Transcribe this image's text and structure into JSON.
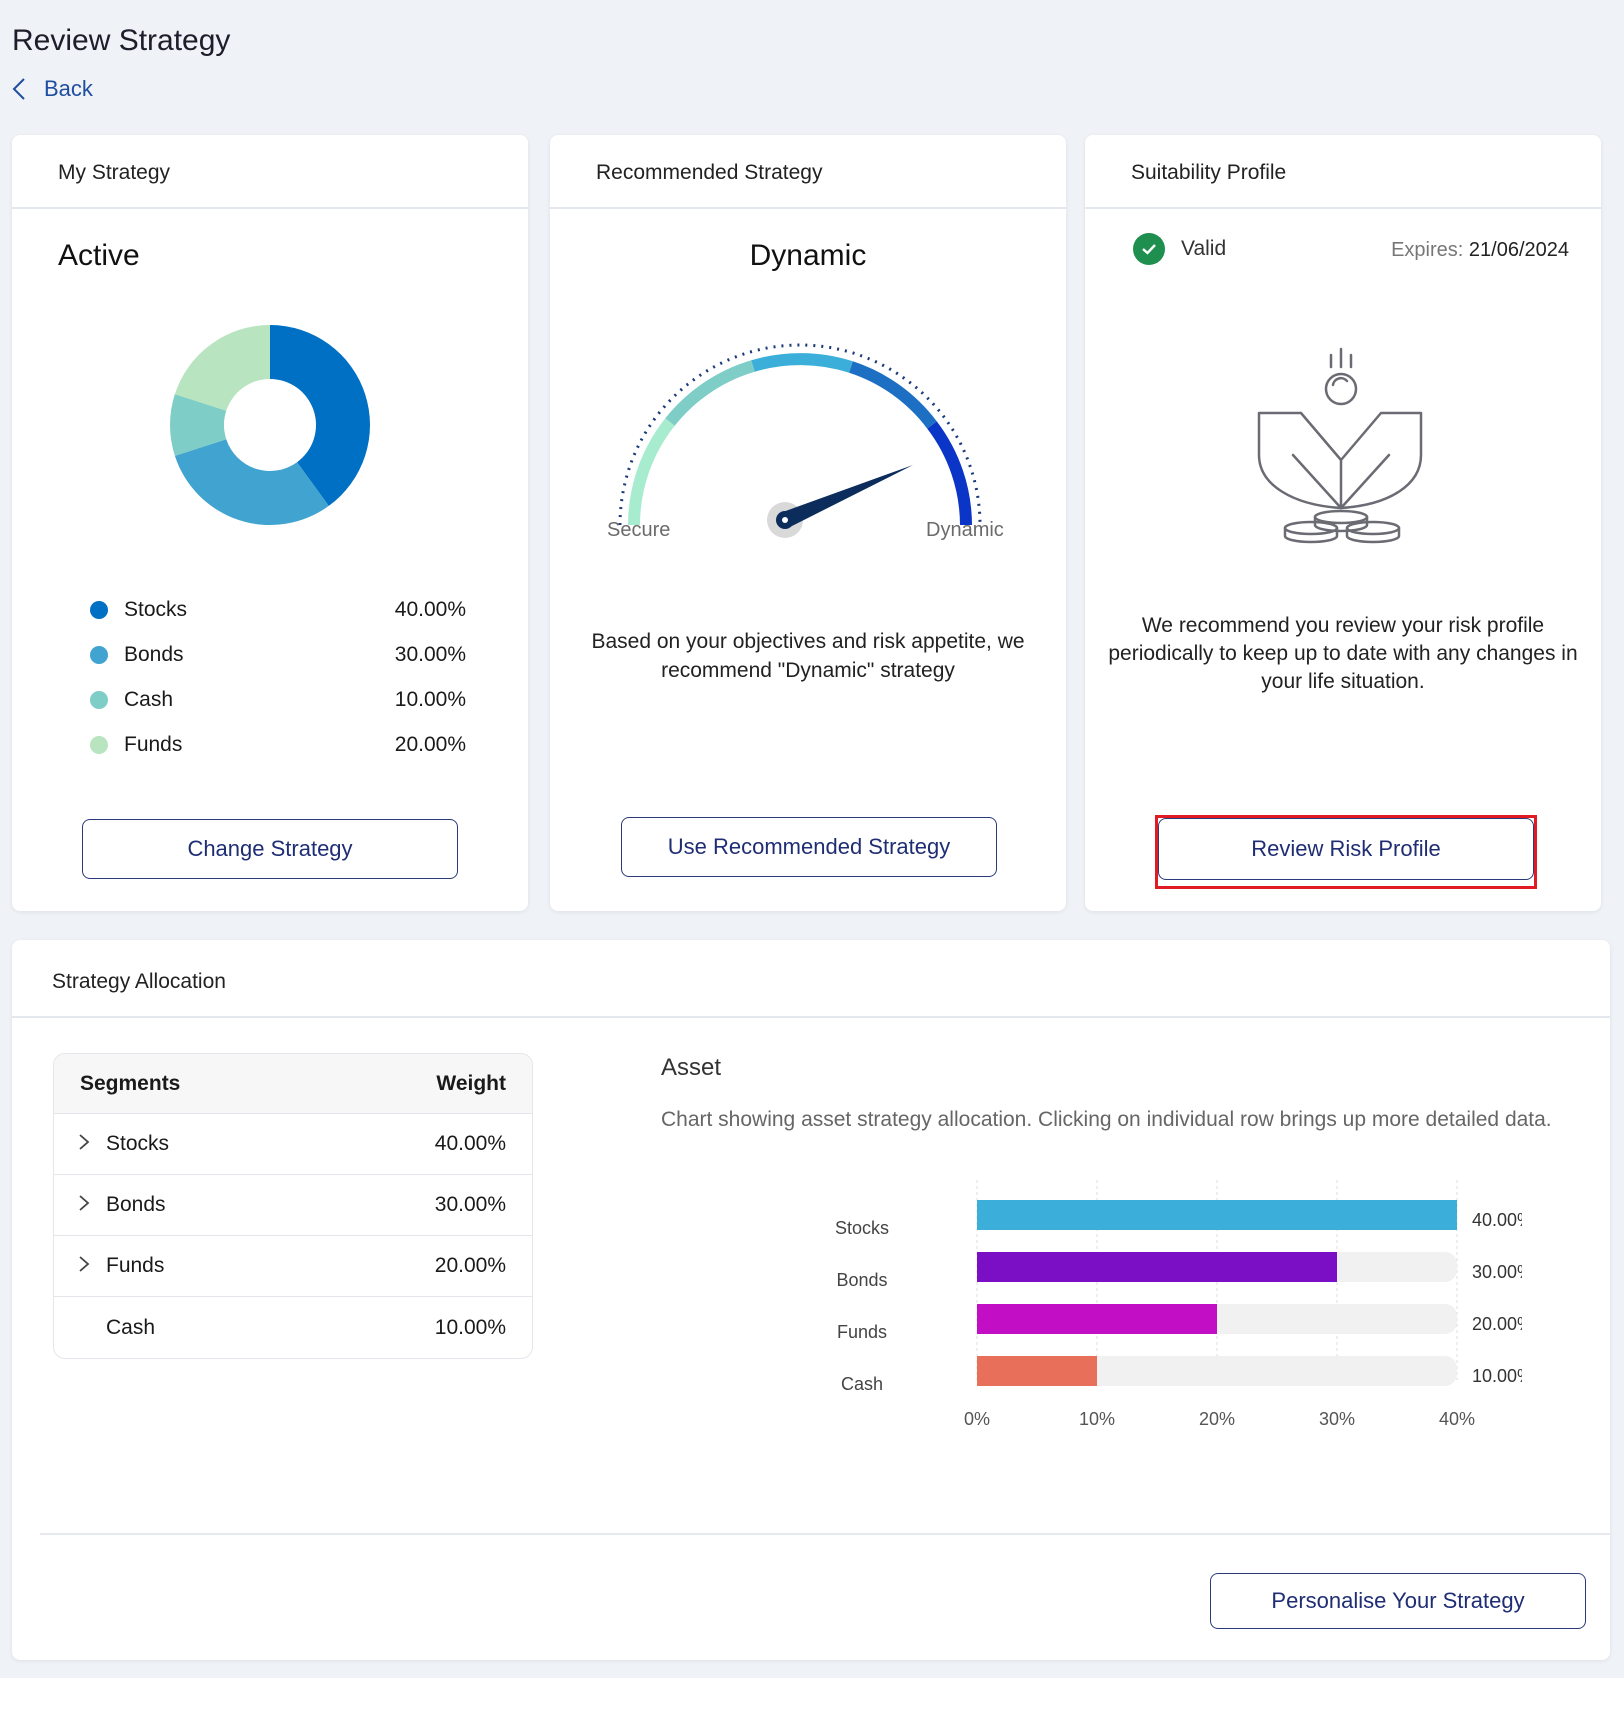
{
  "page": {
    "title": "Review Strategy",
    "back_label": "Back"
  },
  "my_strategy": {
    "header": "My Strategy",
    "status": "Active",
    "legend": [
      {
        "label": "Stocks",
        "value": "40.00%",
        "color": "#0070c4"
      },
      {
        "label": "Bonds",
        "value": "30.00%",
        "color": "#41a3d0"
      },
      {
        "label": "Cash",
        "value": "10.00%",
        "color": "#7ecdc7"
      },
      {
        "label": "Funds",
        "value": "20.00%",
        "color": "#b8e4bf"
      }
    ],
    "button": "Change Strategy"
  },
  "recommended": {
    "header": "Recommended Strategy",
    "title": "Dynamic",
    "gauge_min_label": "Secure",
    "gauge_max_label": "Dynamic",
    "description": "Based on your objectives and risk appetite, we recommend \"Dynamic\" strategy",
    "button": "Use Recommended Strategy"
  },
  "suitability": {
    "header": "Suitability Profile",
    "status": "Valid",
    "expires_label": "Expires:",
    "expires_date": "21/06/2024",
    "description": "We recommend you review your risk profile periodically to keep up to date with any changes in your life situation.",
    "button": "Review Risk Profile"
  },
  "allocation": {
    "header": "Strategy Allocation",
    "table": {
      "col_segments": "Segments",
      "col_weight": "Weight",
      "rows": [
        {
          "name": "Stocks",
          "weight": "40.00%",
          "expandable": true
        },
        {
          "name": "Bonds",
          "weight": "30.00%",
          "expandable": true
        },
        {
          "name": "Funds",
          "weight": "20.00%",
          "expandable": true
        },
        {
          "name": "Cash",
          "weight": "10.00%",
          "expandable": false
        }
      ]
    },
    "asset_title": "Asset",
    "asset_description": "Chart showing asset strategy allocation. Clicking on individual row brings up more detailed data.",
    "button": "Personalise Your Strategy"
  },
  "chart_data": [
    {
      "type": "pie",
      "categories": [
        "Stocks",
        "Bonds",
        "Cash",
        "Funds"
      ],
      "values": [
        40,
        30,
        10,
        20
      ],
      "colors": [
        "#0070c4",
        "#41a3d0",
        "#7ecdc7",
        "#b8e4bf"
      ]
    },
    {
      "type": "bar",
      "categories": [
        "Stocks",
        "Bonds",
        "Funds",
        "Cash"
      ],
      "values": [
        40,
        30,
        20,
        10
      ],
      "value_labels": [
        "40.00%",
        "30.00%",
        "20.00%",
        "10.00%"
      ],
      "colors": [
        "#3bafd9",
        "#7b0fc6",
        "#c20fc6",
        "#e8705a"
      ],
      "xticks": [
        "0%",
        "10%",
        "20%",
        "30%",
        "40%"
      ],
      "xlim": [
        0,
        40
      ]
    }
  ]
}
